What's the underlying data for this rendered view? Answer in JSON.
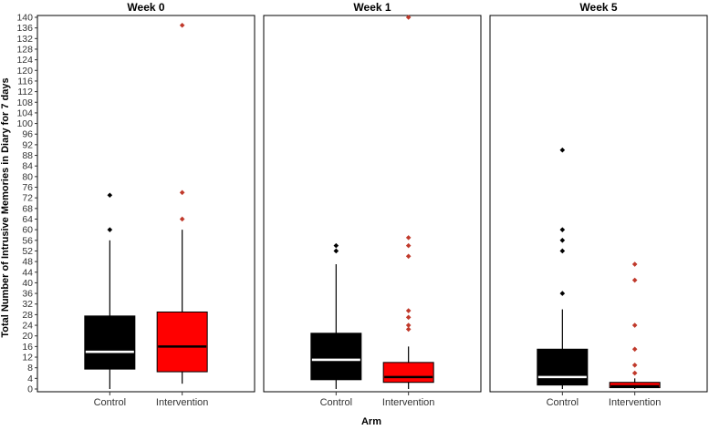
{
  "chart_data": {
    "type": "box",
    "xlabel": "Arm",
    "ylabel": "Total Number of Intrusive Memories in Diary for 7 days",
    "ylim": [
      0,
      140
    ],
    "y_ticks": [
      0,
      4,
      8,
      12,
      16,
      20,
      24,
      28,
      32,
      36,
      40,
      44,
      48,
      52,
      56,
      60,
      64,
      68,
      72,
      76,
      80,
      84,
      88,
      92,
      96,
      100,
      104,
      108,
      112,
      116,
      120,
      124,
      128,
      132,
      136,
      140
    ],
    "grid": false,
    "legend": "none",
    "colors": {
      "Control": "#000000",
      "Intervention": "#ff0000",
      "control_median": "#ffffff",
      "intervention_median": "#000000",
      "control_outlier": "#000000",
      "intervention_outlier": "#c0392b"
    },
    "facets": [
      {
        "title": "Week 0",
        "boxes": [
          {
            "category": "Control",
            "whisker_low": 0,
            "q1": 7.5,
            "median": 14,
            "q3": 27.5,
            "whisker_high": 56,
            "outliers": [
              60,
              73
            ]
          },
          {
            "category": "Intervention",
            "whisker_low": 2,
            "q1": 6.5,
            "median": 16,
            "q3": 29,
            "whisker_high": 60,
            "outliers": [
              64,
              74,
              137
            ]
          }
        ]
      },
      {
        "title": "Week 1",
        "boxes": [
          {
            "category": "Control",
            "whisker_low": 0,
            "q1": 3.5,
            "median": 11,
            "q3": 21,
            "whisker_high": 47,
            "outliers": [
              52,
              54
            ]
          },
          {
            "category": "Intervention",
            "whisker_low": 0,
            "q1": 2.5,
            "median": 4.5,
            "q3": 10,
            "whisker_high": 16,
            "outliers": [
              22.5,
              24,
              27,
              29.5,
              50,
              54,
              57,
              140
            ]
          }
        ]
      },
      {
        "title": "Week 5",
        "boxes": [
          {
            "category": "Control",
            "whisker_low": 0,
            "q1": 1.5,
            "median": 4.5,
            "q3": 15,
            "whisker_high": 30,
            "outliers": [
              36,
              52,
              56,
              60,
              90
            ]
          },
          {
            "category": "Intervention",
            "whisker_low": 0,
            "q1": 0.5,
            "median": 1,
            "q3": 2.5,
            "whisker_high": 4,
            "outliers": [
              6,
              9,
              15,
              24,
              41,
              47
            ]
          }
        ]
      }
    ]
  }
}
